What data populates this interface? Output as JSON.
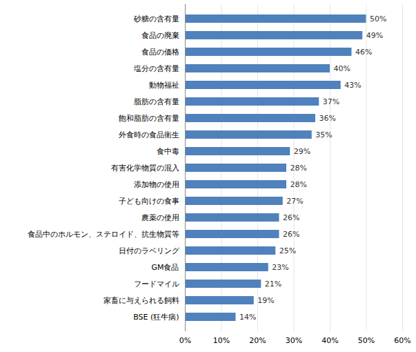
{
  "chart_data": {
    "type": "bar",
    "orientation": "horizontal",
    "categories": [
      "砂糖の含有量",
      "食品の廃棄",
      "食品の価格",
      "塩分の含有量",
      "動物福祉",
      "脂肪の含有量",
      "飽和脂肪の含有量",
      "外食時の食品衛生",
      "食中毒",
      "有害化学物質の混入",
      "添加物の使用",
      "子ども向けの食事",
      "農薬の使用",
      "食品中のホルモン、ステロイド、抗生物質等",
      "日付のラベリング",
      "GM食品",
      "フードマイル",
      "家畜に与えられる飼料",
      "BSE (狂牛病)"
    ],
    "values": [
      50,
      49,
      46,
      40,
      43,
      37,
      36,
      35,
      29,
      28,
      28,
      27,
      26,
      26,
      25,
      23,
      21,
      19,
      14
    ],
    "value_labels": [
      "50%",
      "49%",
      "46%",
      "40%",
      "43%",
      "37%",
      "36%",
      "35%",
      "29%",
      "28%",
      "28%",
      "27%",
      "26%",
      "26%",
      "25%",
      "23%",
      "21%",
      "19%",
      "14%"
    ],
    "data_labels": true,
    "color": "#4f81bd",
    "xlim": [
      0,
      60
    ],
    "xticks": [
      {
        "value": 0,
        "label": "0%"
      },
      {
        "value": 10,
        "label": "10%"
      },
      {
        "value": 20,
        "label": "20%"
      },
      {
        "value": 30,
        "label": "30%"
      },
      {
        "value": 40,
        "label": "40%"
      },
      {
        "value": 50,
        "label": "50%"
      },
      {
        "value": 60,
        "label": "60%"
      }
    ],
    "grid": true
  }
}
